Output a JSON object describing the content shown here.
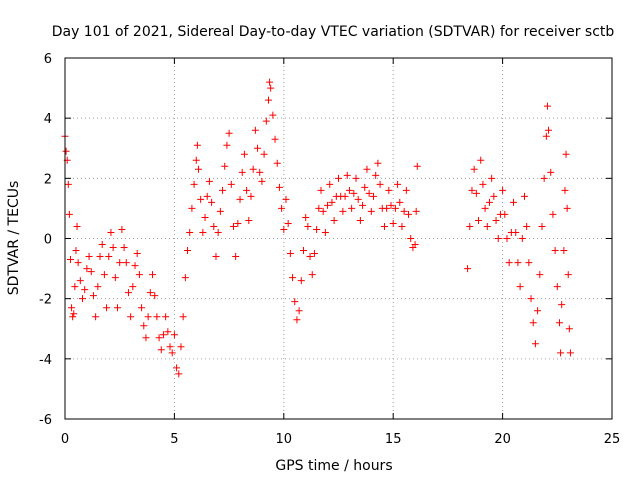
{
  "chart_data": {
    "type": "scatter",
    "title": "Day 101 of 2021, Sidereal Day-to-day VTEC variation (SDTVAR) for receiver sctb",
    "xlabel": "GPS time / hours",
    "ylabel": "SDTVAR / TECUs",
    "xlim": [
      0,
      25
    ],
    "ylim": [
      -6,
      6
    ],
    "xticks": [
      0,
      5,
      10,
      15,
      20,
      25
    ],
    "yticks": [
      -6,
      -4,
      -2,
      0,
      2,
      4,
      6
    ],
    "xtick_labels": [
      "0",
      "5",
      "10",
      "15",
      "20",
      "25"
    ],
    "ytick_labels": [
      "-6",
      "-4",
      "-2",
      "0",
      "2",
      "4",
      "6"
    ],
    "grid": true,
    "marker": "+",
    "marker_color": "#ff0000",
    "series": [
      {
        "name": "SDTVAR",
        "points": [
          [
            0.0,
            3.4
          ],
          [
            0.05,
            2.9
          ],
          [
            0.1,
            2.6
          ],
          [
            0.15,
            1.8
          ],
          [
            0.2,
            0.8
          ],
          [
            0.25,
            -0.7
          ],
          [
            0.3,
            -2.3
          ],
          [
            0.35,
            -2.6
          ],
          [
            0.4,
            -2.5
          ],
          [
            0.45,
            -1.6
          ],
          [
            0.5,
            -0.4
          ],
          [
            0.55,
            0.4
          ],
          [
            0.6,
            -0.8
          ],
          [
            0.7,
            -1.4
          ],
          [
            0.8,
            -2.0
          ],
          [
            0.9,
            -1.7
          ],
          [
            1.0,
            -1.0
          ],
          [
            1.1,
            -0.6
          ],
          [
            1.2,
            -1.1
          ],
          [
            1.3,
            -1.9
          ],
          [
            1.4,
            -2.6
          ],
          [
            1.5,
            -1.6
          ],
          [
            1.6,
            -0.6
          ],
          [
            1.7,
            -0.2
          ],
          [
            1.8,
            -1.2
          ],
          [
            1.9,
            -2.3
          ],
          [
            2.0,
            -0.6
          ],
          [
            2.1,
            0.2
          ],
          [
            2.2,
            -0.3
          ],
          [
            2.3,
            -1.3
          ],
          [
            2.4,
            -2.3
          ],
          [
            2.5,
            -0.8
          ],
          [
            2.6,
            0.3
          ],
          [
            2.7,
            -0.3
          ],
          [
            2.8,
            -0.8
          ],
          [
            2.9,
            -1.8
          ],
          [
            3.0,
            -2.6
          ],
          [
            3.1,
            -1.6
          ],
          [
            3.2,
            -0.9
          ],
          [
            3.3,
            -0.5
          ],
          [
            3.4,
            -1.2
          ],
          [
            3.5,
            -2.3
          ],
          [
            3.6,
            -2.9
          ],
          [
            3.7,
            -3.3
          ],
          [
            3.8,
            -2.6
          ],
          [
            3.9,
            -1.8
          ],
          [
            4.0,
            -1.2
          ],
          [
            4.1,
            -1.9
          ],
          [
            4.2,
            -2.6
          ],
          [
            4.3,
            -3.3
          ],
          [
            4.4,
            -3.7
          ],
          [
            4.5,
            -3.2
          ],
          [
            4.6,
            -2.6
          ],
          [
            4.7,
            -3.1
          ],
          [
            4.8,
            -3.6
          ],
          [
            4.9,
            -3.8
          ],
          [
            5.0,
            -3.2
          ],
          [
            5.1,
            -4.3
          ],
          [
            5.2,
            -4.5
          ],
          [
            5.3,
            -3.6
          ],
          [
            5.4,
            -2.6
          ],
          [
            5.5,
            -1.3
          ],
          [
            5.6,
            -0.4
          ],
          [
            5.7,
            0.2
          ],
          [
            5.8,
            1.0
          ],
          [
            5.9,
            1.8
          ],
          [
            6.0,
            2.6
          ],
          [
            6.05,
            3.1
          ],
          [
            6.1,
            2.3
          ],
          [
            6.2,
            1.3
          ],
          [
            6.3,
            0.2
          ],
          [
            6.4,
            0.7
          ],
          [
            6.5,
            1.4
          ],
          [
            6.6,
            1.9
          ],
          [
            6.7,
            1.2
          ],
          [
            6.8,
            0.4
          ],
          [
            6.9,
            -0.6
          ],
          [
            7.0,
            0.2
          ],
          [
            7.1,
            0.9
          ],
          [
            7.2,
            1.6
          ],
          [
            7.3,
            2.4
          ],
          [
            7.4,
            3.1
          ],
          [
            7.5,
            3.5
          ],
          [
            7.6,
            1.8
          ],
          [
            7.7,
            0.4
          ],
          [
            7.8,
            -0.6
          ],
          [
            7.9,
            0.5
          ],
          [
            8.0,
            1.3
          ],
          [
            8.1,
            2.2
          ],
          [
            8.2,
            2.8
          ],
          [
            8.3,
            1.6
          ],
          [
            8.4,
            0.6
          ],
          [
            8.5,
            1.4
          ],
          [
            8.6,
            2.3
          ],
          [
            8.7,
            3.6
          ],
          [
            8.8,
            3.0
          ],
          [
            8.9,
            2.2
          ],
          [
            9.0,
            1.9
          ],
          [
            9.1,
            2.8
          ],
          [
            9.2,
            3.9
          ],
          [
            9.3,
            4.6
          ],
          [
            9.35,
            5.2
          ],
          [
            9.4,
            5.0
          ],
          [
            9.5,
            4.1
          ],
          [
            9.6,
            3.3
          ],
          [
            9.7,
            2.5
          ],
          [
            9.8,
            1.7
          ],
          [
            9.9,
            1.0
          ],
          [
            10.0,
            0.3
          ],
          [
            10.1,
            1.3
          ],
          [
            10.2,
            0.5
          ],
          [
            10.3,
            -0.5
          ],
          [
            10.4,
            -1.3
          ],
          [
            10.5,
            -2.1
          ],
          [
            10.6,
            -2.7
          ],
          [
            10.7,
            -2.4
          ],
          [
            10.8,
            -1.4
          ],
          [
            10.9,
            -0.4
          ],
          [
            11.0,
            0.7
          ],
          [
            11.1,
            0.4
          ],
          [
            11.2,
            -0.6
          ],
          [
            11.3,
            -1.2
          ],
          [
            11.4,
            -0.5
          ],
          [
            11.5,
            0.3
          ],
          [
            11.6,
            1.0
          ],
          [
            11.7,
            1.6
          ],
          [
            11.8,
            0.9
          ],
          [
            11.9,
            0.2
          ],
          [
            12.0,
            1.1
          ],
          [
            12.1,
            1.8
          ],
          [
            12.2,
            1.2
          ],
          [
            12.3,
            0.6
          ],
          [
            12.4,
            1.4
          ],
          [
            12.5,
            2.0
          ],
          [
            12.6,
            1.4
          ],
          [
            12.7,
            0.9
          ],
          [
            12.8,
            1.4
          ],
          [
            12.9,
            2.1
          ],
          [
            13.0,
            1.6
          ],
          [
            13.1,
            1.0
          ],
          [
            13.2,
            1.5
          ],
          [
            13.3,
            2.0
          ],
          [
            13.4,
            1.3
          ],
          [
            13.5,
            0.6
          ],
          [
            13.6,
            1.1
          ],
          [
            13.7,
            1.7
          ],
          [
            13.8,
            2.3
          ],
          [
            13.9,
            1.5
          ],
          [
            14.0,
            0.9
          ],
          [
            14.1,
            1.4
          ],
          [
            14.2,
            2.1
          ],
          [
            14.3,
            2.5
          ],
          [
            14.4,
            1.8
          ],
          [
            14.5,
            1.0
          ],
          [
            14.6,
            0.4
          ],
          [
            14.7,
            1.0
          ],
          [
            14.8,
            1.6
          ],
          [
            14.9,
            1.1
          ],
          [
            15.0,
            0.5
          ],
          [
            15.1,
            1.0
          ],
          [
            15.2,
            1.8
          ],
          [
            15.3,
            1.2
          ],
          [
            15.4,
            0.4
          ],
          [
            15.5,
            0.9
          ],
          [
            15.6,
            1.6
          ],
          [
            15.7,
            0.8
          ],
          [
            15.8,
            0.0
          ],
          [
            15.9,
            -0.3
          ],
          [
            16.0,
            -0.2
          ],
          [
            16.05,
            0.9
          ],
          [
            16.1,
            2.4
          ],
          [
            18.4,
            -1.0
          ],
          [
            18.5,
            0.4
          ],
          [
            18.6,
            1.6
          ],
          [
            18.7,
            2.3
          ],
          [
            18.8,
            1.5
          ],
          [
            18.9,
            0.6
          ],
          [
            19.0,
            2.6
          ],
          [
            19.1,
            1.8
          ],
          [
            19.2,
            1.0
          ],
          [
            19.3,
            0.4
          ],
          [
            19.4,
            1.2
          ],
          [
            19.5,
            2.0
          ],
          [
            19.6,
            1.4
          ],
          [
            19.7,
            0.6
          ],
          [
            19.8,
            0.0
          ],
          [
            19.9,
            0.8
          ],
          [
            20.0,
            1.6
          ],
          [
            20.1,
            0.8
          ],
          [
            20.2,
            0.0
          ],
          [
            20.3,
            -0.8
          ],
          [
            20.4,
            0.2
          ],
          [
            20.5,
            1.2
          ],
          [
            20.6,
            0.2
          ],
          [
            20.7,
            -0.8
          ],
          [
            20.8,
            -1.6
          ],
          [
            20.9,
            0.0
          ],
          [
            21.0,
            1.4
          ],
          [
            21.1,
            0.4
          ],
          [
            21.2,
            -0.8
          ],
          [
            21.3,
            -2.0
          ],
          [
            21.4,
            -2.8
          ],
          [
            21.5,
            -3.5
          ],
          [
            21.6,
            -2.4
          ],
          [
            21.7,
            -1.2
          ],
          [
            21.8,
            0.4
          ],
          [
            21.9,
            2.0
          ],
          [
            22.0,
            3.4
          ],
          [
            22.05,
            4.4
          ],
          [
            22.1,
            3.6
          ],
          [
            22.2,
            2.2
          ],
          [
            22.3,
            0.8
          ],
          [
            22.4,
            -0.4
          ],
          [
            22.5,
            -1.6
          ],
          [
            22.6,
            -2.8
          ],
          [
            22.65,
            -3.8
          ],
          [
            22.7,
            -2.2
          ],
          [
            22.8,
            -0.4
          ],
          [
            22.85,
            1.6
          ],
          [
            22.9,
            2.8
          ],
          [
            22.95,
            1.0
          ],
          [
            23.0,
            -1.2
          ],
          [
            23.05,
            -3.0
          ],
          [
            23.1,
            -3.8
          ]
        ]
      }
    ]
  }
}
